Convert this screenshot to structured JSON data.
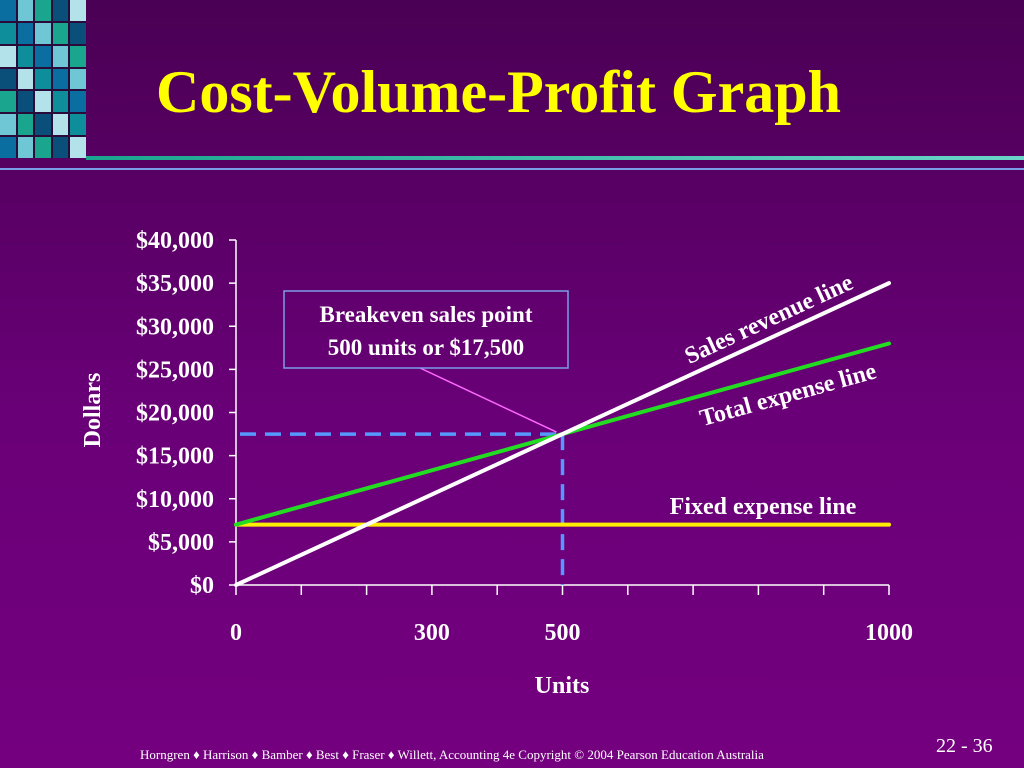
{
  "slide": {
    "title": "Cost-Volume-Profit Graph",
    "footer": "Horngren ♦ Harrison ♦ Bamber ♦ Best ♦ Fraser ♦ Willett, Accounting 4e Copyright © 2004 Pearson Education Australia",
    "page": "22 - 36"
  },
  "colors": {
    "background": "#6a0078",
    "title": "#ffff00",
    "revenue": "#ffffff",
    "total_expense": "#22dd22",
    "fixed_expense": "#ffee00",
    "breakeven_guide": "#5599ff",
    "callout_border": "#7b9de8",
    "callout_pointer": "#ff66ff"
  },
  "chart_data": {
    "type": "line",
    "xlabel": "Units",
    "ylabel": "Dollars",
    "xlim": [
      0,
      1000
    ],
    "ylim": [
      0,
      40000
    ],
    "x_ticks": [
      0,
      100,
      200,
      300,
      400,
      500,
      600,
      700,
      800,
      900,
      1000
    ],
    "x_tick_labels": [
      {
        "value": 0,
        "label": "0"
      },
      {
        "value": 300,
        "label": "300"
      },
      {
        "value": 500,
        "label": "500"
      },
      {
        "value": 1000,
        "label": "1000"
      }
    ],
    "y_ticks": [
      {
        "value": 0,
        "label": "$0"
      },
      {
        "value": 5000,
        "label": "$5,000"
      },
      {
        "value": 10000,
        "label": "$10,000"
      },
      {
        "value": 15000,
        "label": "$15,000"
      },
      {
        "value": 20000,
        "label": "$20,000"
      },
      {
        "value": 25000,
        "label": "$25,000"
      },
      {
        "value": 30000,
        "label": "$30,000"
      },
      {
        "value": 35000,
        "label": "$35,000"
      },
      {
        "value": 40000,
        "label": "$40,000"
      }
    ],
    "series": [
      {
        "key": "revenue",
        "name": "Sales revenue line",
        "x": [
          0,
          1000
        ],
        "y": [
          0,
          35000
        ]
      },
      {
        "key": "total_expense",
        "name": "Total expense line",
        "x": [
          0,
          1000
        ],
        "y": [
          7000,
          28000
        ]
      },
      {
        "key": "fixed_expense",
        "name": "Fixed expense line",
        "x": [
          0,
          1000
        ],
        "y": [
          7000,
          7000
        ]
      }
    ],
    "breakeven": {
      "units": 500,
      "dollars": 17500,
      "label_line1": "Breakeven sales point",
      "label_line2": "500 units or $17,500"
    },
    "grid": false
  }
}
